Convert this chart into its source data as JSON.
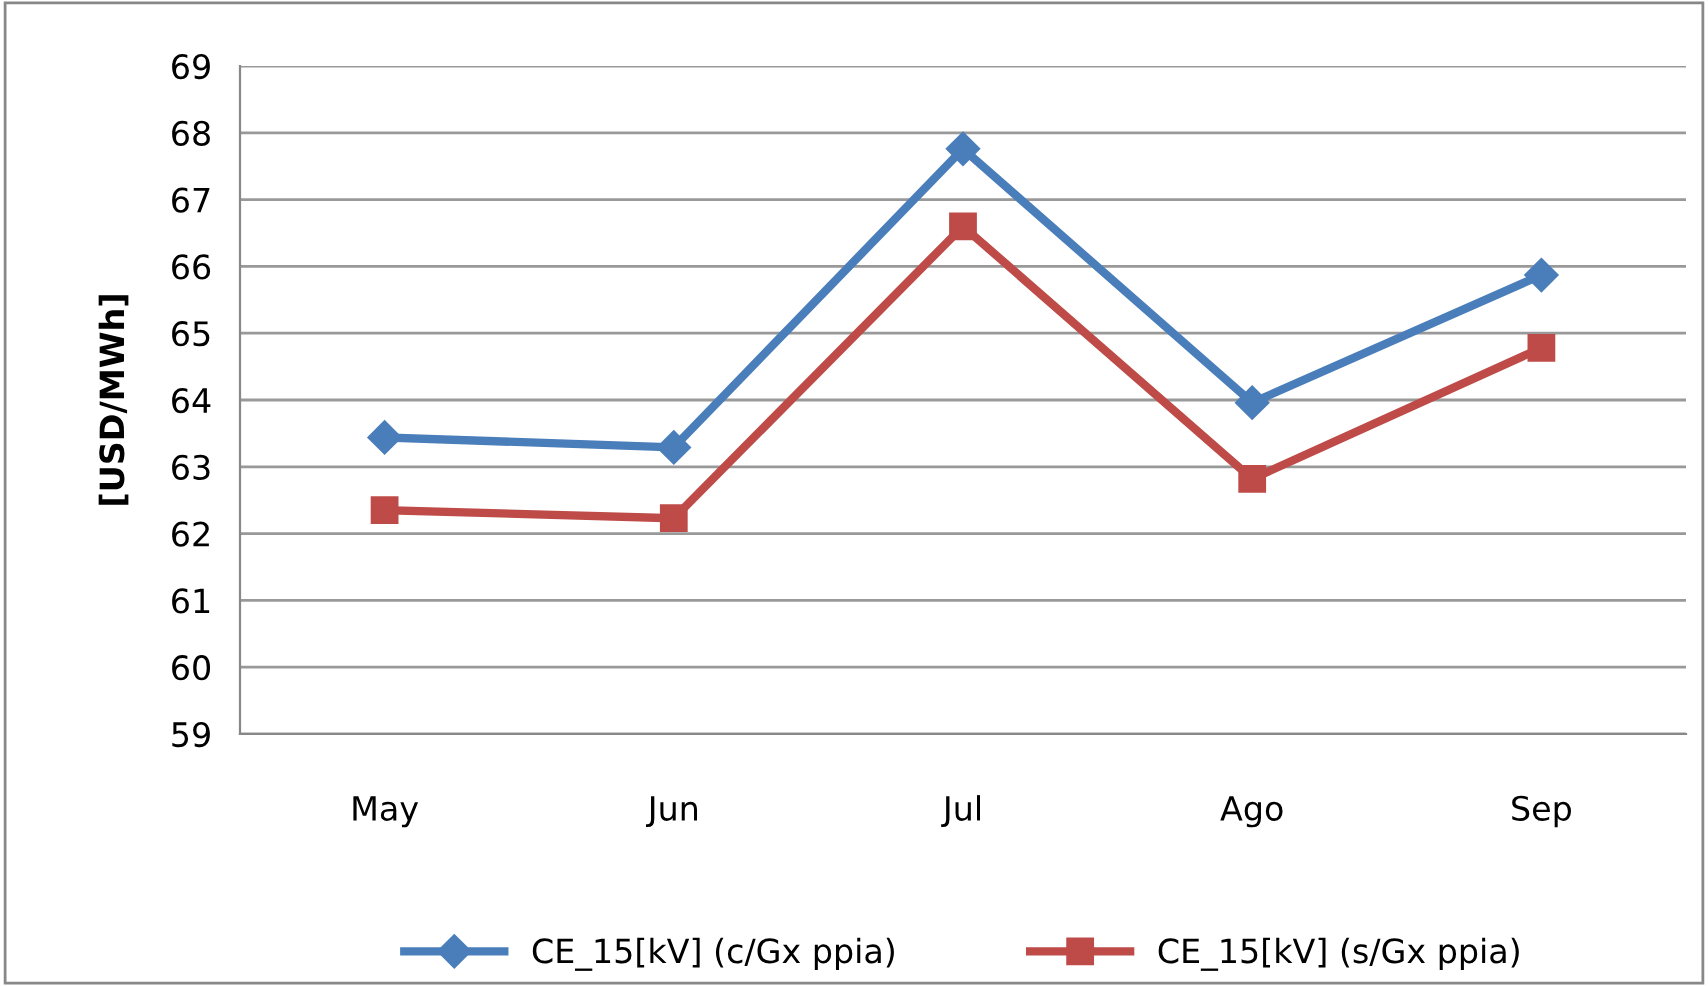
{
  "chart_data": {
    "type": "line",
    "ylabel": "[USD/MWh]",
    "categories": [
      "May",
      "Jun",
      "Jul",
      "Ago",
      "Sep"
    ],
    "series": [
      {
        "name": "CE_15[kV] (c/Gx ppia)",
        "color": "#4a7ebb",
        "marker": "diamond",
        "values": [
          63.44,
          63.29,
          67.76,
          63.96,
          65.87
        ]
      },
      {
        "name": "CE_15[kV] (s/Gx ppia)",
        "color": "#be4b48",
        "marker": "square",
        "values": [
          62.35,
          62.23,
          66.6,
          62.82,
          64.78
        ]
      }
    ],
    "ylim": [
      59,
      69
    ],
    "yticks": [
      59,
      60,
      61,
      62,
      63,
      64,
      65,
      66,
      67,
      68,
      69
    ],
    "grid": "y",
    "legend": "bottom",
    "line_style": "solid"
  }
}
